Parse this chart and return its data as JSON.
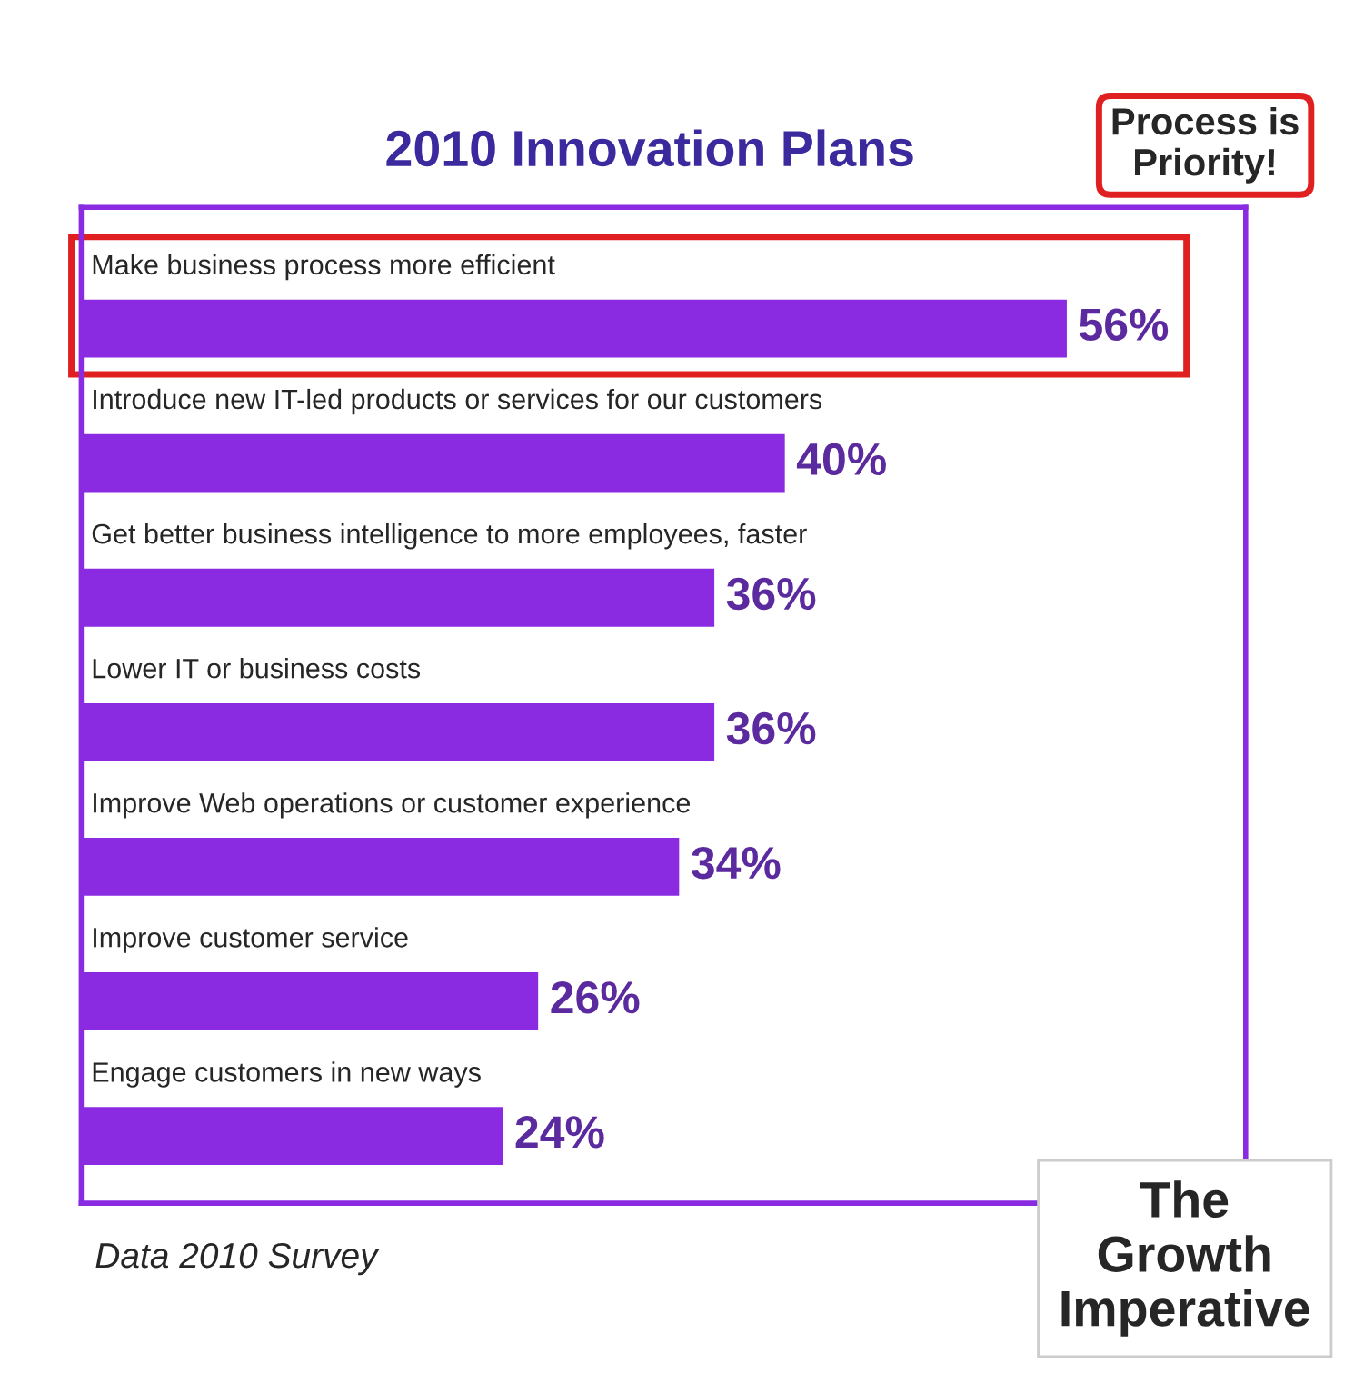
{
  "chart_data": {
    "type": "bar",
    "orientation": "horizontal",
    "title": "2010 Innovation Plans",
    "categories": [
      "Make business process more efficient",
      "Introduce new IT-led products or services for our customers",
      "Get better business intelligence to more employees, faster",
      "Lower IT or business costs",
      "Improve Web operations or customer experience",
      "Improve customer service",
      "Engage customers in new ways"
    ],
    "values": [
      56,
      40,
      36,
      36,
      34,
      26,
      24
    ],
    "value_labels": [
      "56%",
      "40%",
      "36%",
      "36%",
      "34%",
      "26%",
      "24%"
    ],
    "color": "#8a2be2",
    "annotations": [
      "Process is\nPriority!",
      "The\nGrowth\nImperative",
      "Data 2010 Survey"
    ]
  }
}
